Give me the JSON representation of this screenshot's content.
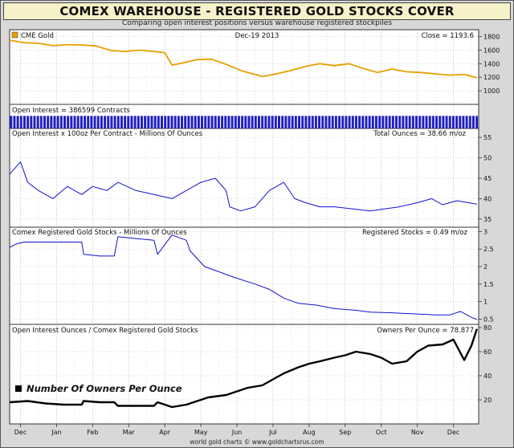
{
  "header": {
    "title": "COMEX WAREHOUSE - REGISTERED GOLD STOCKS COVER",
    "subtitle": "Comparing open interest positions versus warehouse registered stockpiles",
    "footer": "world gold charts © www.goldchartsrus.com"
  },
  "colors": {
    "gold": "#e8a000",
    "blue": "#1010d0",
    "black": "#000000",
    "oi_bars": "#2020c0"
  },
  "chart_data": [
    {
      "type": "line",
      "panel": "price",
      "legend": "CME Gold",
      "date_label": "Dec-19  2013",
      "value_label": "Close = 1193.6",
      "ylim": [
        800,
        1900
      ],
      "yticks": [
        "1800",
        "1600",
        "1400",
        "1200",
        "1000"
      ],
      "x_months": [
        "Dec",
        "Jan",
        "Feb",
        "Mar",
        "Apr",
        "May",
        "Jun",
        "Jul",
        "Aug",
        "Sep",
        "Oct",
        "Nov",
        "Dec"
      ],
      "x_month_positions": [
        0.3,
        1.3,
        2.3,
        3.3,
        4.3,
        5.3,
        6.3,
        7.3,
        8.3,
        9.3,
        10.3,
        11.3,
        12.3
      ],
      "x": [
        0,
        0.4,
        0.8,
        1.2,
        1.6,
        2.0,
        2.4,
        2.8,
        3.2,
        3.6,
        4.0,
        4.3,
        4.5,
        4.8,
        5.2,
        5.6,
        6.0,
        6.4,
        6.8,
        7.0,
        7.4,
        7.8,
        8.2,
        8.6,
        9.0,
        9.4,
        9.8,
        10.2,
        10.6,
        11.0,
        11.4,
        11.8,
        12.2,
        12.6,
        12.95
      ],
      "values": [
        1745,
        1710,
        1700,
        1665,
        1680,
        1675,
        1660,
        1595,
        1580,
        1600,
        1580,
        1560,
        1380,
        1410,
        1460,
        1465,
        1390,
        1300,
        1240,
        1210,
        1250,
        1300,
        1360,
        1400,
        1370,
        1400,
        1330,
        1270,
        1320,
        1280,
        1270,
        1250,
        1230,
        1240,
        1193.6
      ]
    },
    {
      "type": "bar",
      "panel": "open_interest",
      "value_label": "Open Interest = 386599 Contracts",
      "bar_count": 140,
      "values": [
        0.92,
        0.92,
        0.92,
        0.92,
        0.92,
        0.92,
        0.92,
        0.92,
        0.92,
        0.92,
        0.92,
        0.92,
        0.92,
        0.92,
        0.92,
        0.92,
        0.92,
        0.92,
        0.92,
        0.92,
        0.92,
        0.92,
        0.92,
        0.92,
        0.92,
        0.92,
        0.92,
        0.92,
        0.92,
        0.92,
        0.92,
        0.92,
        0.92,
        0.92,
        0.92,
        0.92,
        0.92,
        0.92,
        0.92,
        0.92,
        0.92,
        0.92,
        0.92,
        0.92,
        0.92,
        0.92,
        0.92,
        0.92,
        0.92,
        0.92,
        0.92,
        0.92,
        0.92,
        0.92,
        0.92,
        0.92,
        0.92,
        0.92,
        0.92,
        0.92,
        0.92,
        0.92,
        0.92,
        0.92,
        0.92,
        0.92,
        0.92,
        0.92,
        0.92,
        0.92,
        0.92,
        0.92,
        0.92,
        0.92,
        0.92,
        0.92,
        0.92,
        0.92,
        0.92,
        0.92,
        0.92,
        0.92,
        0.92,
        0.92,
        0.92,
        0.92,
        0.92,
        0.92,
        0.92,
        0.92,
        0.92,
        0.92,
        0.92,
        0.92,
        0.92,
        0.92,
        0.92,
        0.92,
        0.92,
        0.92,
        0.92,
        0.92,
        0.92,
        0.92,
        0.92,
        0.92,
        0.92,
        0.92,
        0.92,
        0.92,
        0.92,
        0.92,
        0.92,
        0.92,
        0.92,
        0.92,
        0.92,
        0.92,
        0.92,
        0.92,
        0.92,
        0.92,
        0.92,
        0.92,
        0.92,
        0.92,
        0.92,
        0.92,
        0.92,
        0.92,
        0.92,
        0.92,
        0.92,
        0.92,
        0.92,
        0.92,
        0.92,
        0.92,
        0.92,
        0.92
      ]
    },
    {
      "type": "line",
      "panel": "oi_ounces",
      "title": "Open Interest x 100oz Per Contract  -  Millions Of Ounces",
      "value_label": "Total Ounces = 38.66 m/oz",
      "ylim": [
        33,
        57
      ],
      "yticks": [
        "55",
        "50",
        "45",
        "40",
        "35"
      ],
      "x": [
        0,
        0.3,
        0.5,
        0.8,
        1.2,
        1.6,
        2.0,
        2.3,
        2.7,
        3.0,
        3.5,
        4.0,
        4.5,
        4.9,
        5.3,
        5.7,
        6.0,
        6.1,
        6.4,
        6.8,
        7.2,
        7.6,
        7.9,
        8.2,
        8.6,
        9.0,
        9.5,
        10.0,
        10.4,
        10.8,
        11.3,
        11.7,
        12.0,
        12.4,
        12.95
      ],
      "values": [
        46,
        49,
        44,
        42,
        40,
        43,
        41,
        43,
        42,
        44,
        42,
        41,
        40,
        42,
        44,
        45,
        42,
        38,
        37,
        38,
        42,
        44,
        40,
        39,
        38,
        38,
        37.5,
        37,
        37.5,
        38,
        39,
        40,
        38.5,
        39.5,
        38.66
      ]
    },
    {
      "type": "line",
      "panel": "registered",
      "title": "Comex Registered Gold Stocks  -  Millions Of Ounces",
      "value_label": "Registered Stocks = 0.49 m/oz",
      "ylim": [
        0.35,
        3.1
      ],
      "yticks": [
        "3",
        "2.5",
        "2",
        "1.5",
        "1",
        "0.5"
      ],
      "x": [
        0,
        0.2,
        0.4,
        1.0,
        1.6,
        2.0,
        2.05,
        2.5,
        2.9,
        3.0,
        3.5,
        4.0,
        4.1,
        4.5,
        4.9,
        5.0,
        5.4,
        5.8,
        6.2,
        6.8,
        7.2,
        7.6,
        8.0,
        8.5,
        9.0,
        9.6,
        10.0,
        10.6,
        11.2,
        11.8,
        12.2,
        12.5,
        12.8,
        12.95
      ],
      "values": [
        2.55,
        2.65,
        2.7,
        2.7,
        2.7,
        2.7,
        2.35,
        2.3,
        2.3,
        2.85,
        2.8,
        2.75,
        2.35,
        2.9,
        2.75,
        2.45,
        2.0,
        1.85,
        1.7,
        1.5,
        1.35,
        1.1,
        0.95,
        0.9,
        0.8,
        0.75,
        0.7,
        0.68,
        0.65,
        0.62,
        0.62,
        0.72,
        0.55,
        0.49
      ]
    },
    {
      "type": "line",
      "panel": "owners",
      "title": "Open Interest Ounces / Comex Registered Gold Stocks",
      "value_label": "Owners Per Ounce = 78.877",
      "legend": "Number Of Owners Per Ounce",
      "ylim": [
        0,
        82
      ],
      "yticks": [
        "80",
        "60",
        "40",
        "20"
      ],
      "x": [
        0,
        0.5,
        1.0,
        1.5,
        2.0,
        2.05,
        2.5,
        2.9,
        3.0,
        3.5,
        4.0,
        4.1,
        4.5,
        4.9,
        5.0,
        5.5,
        6.0,
        6.3,
        6.6,
        7.0,
        7.3,
        7.6,
        8.0,
        8.3,
        8.6,
        9.0,
        9.3,
        9.6,
        10.0,
        10.3,
        10.6,
        11.0,
        11.3,
        11.6,
        12.0,
        12.3,
        12.6,
        12.8,
        12.95
      ],
      "values": [
        18,
        19,
        17,
        16,
        16,
        19,
        18,
        18,
        15,
        15,
        15,
        18,
        14,
        16,
        17,
        22,
        24,
        27,
        30,
        32,
        37,
        42,
        47,
        50,
        52,
        55,
        57,
        60,
        58,
        55,
        50,
        52,
        60,
        65,
        66,
        70,
        53,
        65,
        78.877
      ]
    }
  ]
}
